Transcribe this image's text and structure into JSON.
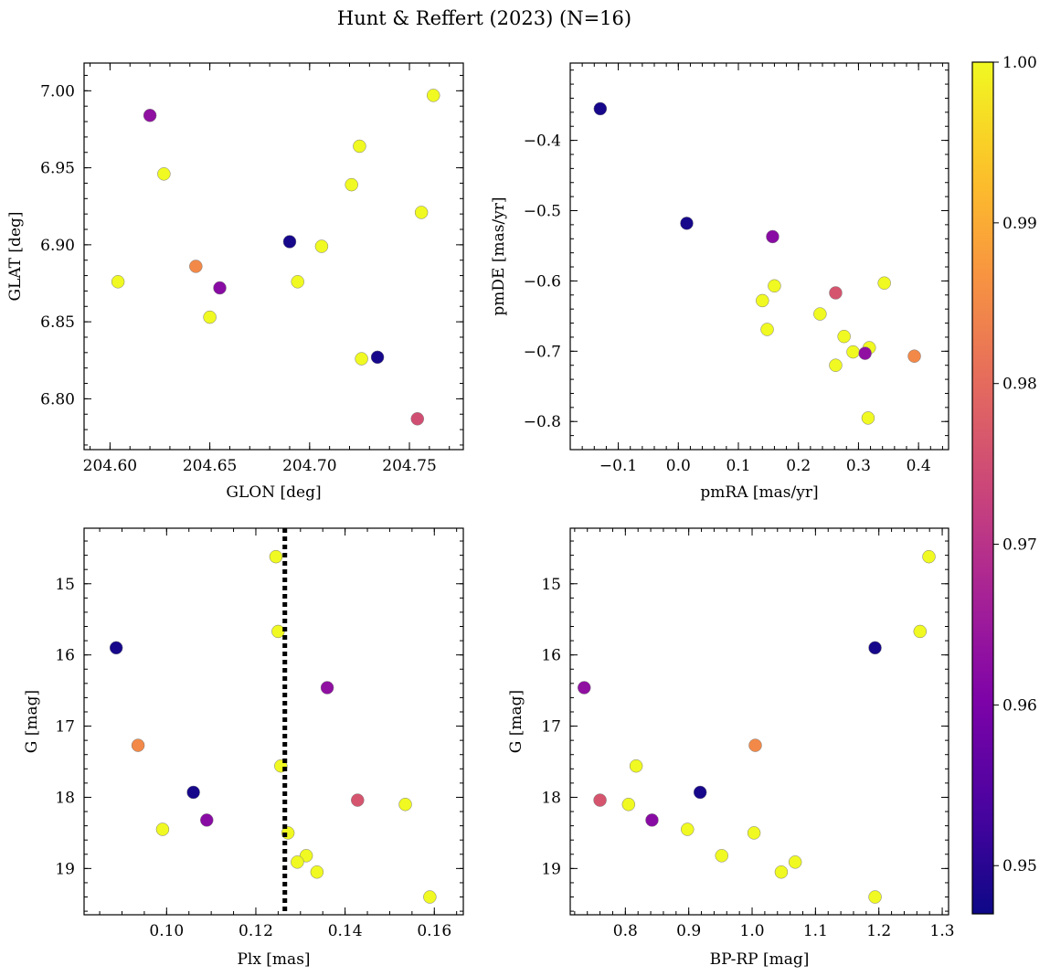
{
  "figure": {
    "title": "Hunt & Reffert (2023) (N=16)"
  },
  "colorbar": {
    "range": [
      0.947,
      1.0
    ],
    "ticks": [
      "0.95",
      "0.96",
      "0.97",
      "0.98",
      "0.99",
      "1.00"
    ],
    "tick_values": [
      0.95,
      0.96,
      0.97,
      0.98,
      0.99,
      1.0
    ],
    "colormap": "plasma"
  },
  "chart_data": [
    {
      "type": "scatter",
      "xlabel": "GLON [deg]",
      "ylabel": "GLAT [deg]",
      "xlim": [
        204.587,
        204.777
      ],
      "ylim": [
        6.767,
        7.018
      ],
      "xinvert": false,
      "yinvert": false,
      "xticks": [
        204.6,
        204.65,
        204.7,
        204.75
      ],
      "xticklabels": [
        "204.60",
        "204.65",
        "204.70",
        "204.75"
      ],
      "xminor": 0.01,
      "yticks": [
        6.8,
        6.85,
        6.9,
        6.95,
        7.0
      ],
      "yticklabels": [
        "6.80",
        "6.85",
        "6.90",
        "6.95",
        "7.00"
      ],
      "yminor": 0.01,
      "vline": null,
      "points": [
        {
          "x": 204.604,
          "y": 6.876,
          "c": 1.0
        },
        {
          "x": 204.62,
          "y": 6.984,
          "c": 0.963
        },
        {
          "x": 204.627,
          "y": 6.946,
          "c": 1.0
        },
        {
          "x": 204.643,
          "y": 6.886,
          "c": 0.985
        },
        {
          "x": 204.65,
          "y": 6.853,
          "c": 1.0
        },
        {
          "x": 204.655,
          "y": 6.872,
          "c": 0.962
        },
        {
          "x": 204.69,
          "y": 6.902,
          "c": 0.948
        },
        {
          "x": 204.694,
          "y": 6.876,
          "c": 1.0
        },
        {
          "x": 204.706,
          "y": 6.899,
          "c": 1.0
        },
        {
          "x": 204.721,
          "y": 6.939,
          "c": 1.0
        },
        {
          "x": 204.725,
          "y": 6.964,
          "c": 1.0
        },
        {
          "x": 204.726,
          "y": 6.826,
          "c": 1.0
        },
        {
          "x": 204.734,
          "y": 6.827,
          "c": 0.948
        },
        {
          "x": 204.754,
          "y": 6.787,
          "c": 0.975
        },
        {
          "x": 204.756,
          "y": 6.921,
          "c": 1.0
        },
        {
          "x": 204.762,
          "y": 6.997,
          "c": 1.0
        }
      ]
    },
    {
      "type": "scatter",
      "xlabel": "pmRA [mas/yr]",
      "ylabel": "pmDE [mas/yr]",
      "xlim": [
        -0.18,
        0.45
      ],
      "ylim": [
        -0.84,
        -0.29
      ],
      "xinvert": false,
      "yinvert": false,
      "xticks": [
        -0.1,
        0.0,
        0.1,
        0.2,
        0.3,
        0.4
      ],
      "xticklabels": [
        "−0.1",
        "0.0",
        "0.1",
        "0.2",
        "0.3",
        "0.4"
      ],
      "xminor": 0.02,
      "yticks": [
        -0.8,
        -0.7,
        -0.6,
        -0.5,
        -0.4
      ],
      "yticklabels": [
        "−0.8",
        "−0.7",
        "−0.6",
        "−0.5",
        "−0.4"
      ],
      "yminor": 0.02,
      "vline": null,
      "points": [
        {
          "x": -0.13,
          "y": -0.355,
          "c": 0.948
        },
        {
          "x": 0.014,
          "y": -0.518,
          "c": 0.948
        },
        {
          "x": 0.157,
          "y": -0.537,
          "c": 0.962
        },
        {
          "x": 0.343,
          "y": -0.603,
          "c": 1.0
        },
        {
          "x": 0.16,
          "y": -0.607,
          "c": 1.0
        },
        {
          "x": 0.262,
          "y": -0.617,
          "c": 0.976
        },
        {
          "x": 0.14,
          "y": -0.628,
          "c": 1.0
        },
        {
          "x": 0.236,
          "y": -0.647,
          "c": 1.0
        },
        {
          "x": 0.148,
          "y": -0.669,
          "c": 1.0
        },
        {
          "x": 0.276,
          "y": -0.679,
          "c": 1.0
        },
        {
          "x": 0.318,
          "y": -0.695,
          "c": 1.0
        },
        {
          "x": 0.291,
          "y": -0.701,
          "c": 1.0
        },
        {
          "x": 0.311,
          "y": -0.703,
          "c": 0.963
        },
        {
          "x": 0.393,
          "y": -0.707,
          "c": 0.985
        },
        {
          "x": 0.262,
          "y": -0.72,
          "c": 1.0
        },
        {
          "x": 0.316,
          "y": -0.795,
          "c": 1.0
        }
      ]
    },
    {
      "type": "scatter",
      "xlabel": "Plx [mas]",
      "ylabel": "G [mag]",
      "xlim": [
        0.0815,
        0.1665
      ],
      "ylim": [
        14.22,
        19.65
      ],
      "xinvert": false,
      "yinvert": true,
      "xticks": [
        0.1,
        0.12,
        0.14,
        0.16
      ],
      "xticklabels": [
        "0.10",
        "0.12",
        "0.14",
        "0.16"
      ],
      "xminor": 0.005,
      "yticks": [
        15,
        16,
        17,
        18,
        19
      ],
      "yticklabels": [
        "15",
        "16",
        "17",
        "18",
        "19"
      ],
      "yminor": 0.2,
      "vline": 0.1265,
      "points": [
        {
          "x": 0.1245,
          "y": 14.62,
          "c": 1.0
        },
        {
          "x": 0.125,
          "y": 15.67,
          "c": 1.0
        },
        {
          "x": 0.0887,
          "y": 15.9,
          "c": 0.948
        },
        {
          "x": 0.136,
          "y": 16.46,
          "c": 0.963
        },
        {
          "x": 0.0936,
          "y": 17.27,
          "c": 0.985
        },
        {
          "x": 0.1256,
          "y": 17.56,
          "c": 1.0
        },
        {
          "x": 0.106,
          "y": 17.93,
          "c": 0.948
        },
        {
          "x": 0.1428,
          "y": 18.04,
          "c": 0.976
        },
        {
          "x": 0.1535,
          "y": 18.1,
          "c": 1.0
        },
        {
          "x": 0.109,
          "y": 18.32,
          "c": 0.962
        },
        {
          "x": 0.0991,
          "y": 18.45,
          "c": 1.0
        },
        {
          "x": 0.1272,
          "y": 18.5,
          "c": 1.0
        },
        {
          "x": 0.1313,
          "y": 18.82,
          "c": 1.0
        },
        {
          "x": 0.1293,
          "y": 18.91,
          "c": 1.0
        },
        {
          "x": 0.1337,
          "y": 19.05,
          "c": 1.0
        },
        {
          "x": 0.159,
          "y": 19.4,
          "c": 1.0
        }
      ]
    },
    {
      "type": "scatter",
      "xlabel": "BP-RP [mag]",
      "ylabel": "G [mag]",
      "xlim": [
        0.713,
        1.31
      ],
      "ylim": [
        14.22,
        19.65
      ],
      "xinvert": false,
      "yinvert": true,
      "xticks": [
        0.8,
        0.9,
        1.0,
        1.1,
        1.2,
        1.3
      ],
      "xticklabels": [
        "0.8",
        "0.9",
        "1.0",
        "1.1",
        "1.2",
        "1.3"
      ],
      "xminor": 0.02,
      "yticks": [
        15,
        16,
        17,
        18,
        19
      ],
      "yticklabels": [
        "15",
        "16",
        "17",
        "18",
        "19"
      ],
      "yminor": 0.2,
      "vline": null,
      "points": [
        {
          "x": 1.279,
          "y": 14.62,
          "c": 1.0
        },
        {
          "x": 1.265,
          "y": 15.67,
          "c": 1.0
        },
        {
          "x": 1.194,
          "y": 15.9,
          "c": 0.948
        },
        {
          "x": 0.735,
          "y": 16.46,
          "c": 0.963
        },
        {
          "x": 1.005,
          "y": 17.27,
          "c": 0.985
        },
        {
          "x": 0.817,
          "y": 17.56,
          "c": 1.0
        },
        {
          "x": 0.918,
          "y": 17.93,
          "c": 0.948
        },
        {
          "x": 0.76,
          "y": 18.04,
          "c": 0.976
        },
        {
          "x": 0.805,
          "y": 18.1,
          "c": 1.0
        },
        {
          "x": 0.842,
          "y": 18.32,
          "c": 0.962
        },
        {
          "x": 0.898,
          "y": 18.45,
          "c": 1.0
        },
        {
          "x": 1.003,
          "y": 18.5,
          "c": 1.0
        },
        {
          "x": 0.952,
          "y": 18.82,
          "c": 1.0
        },
        {
          "x": 1.068,
          "y": 18.91,
          "c": 1.0
        },
        {
          "x": 1.046,
          "y": 19.05,
          "c": 1.0
        },
        {
          "x": 1.194,
          "y": 19.4,
          "c": 1.0
        }
      ]
    }
  ]
}
